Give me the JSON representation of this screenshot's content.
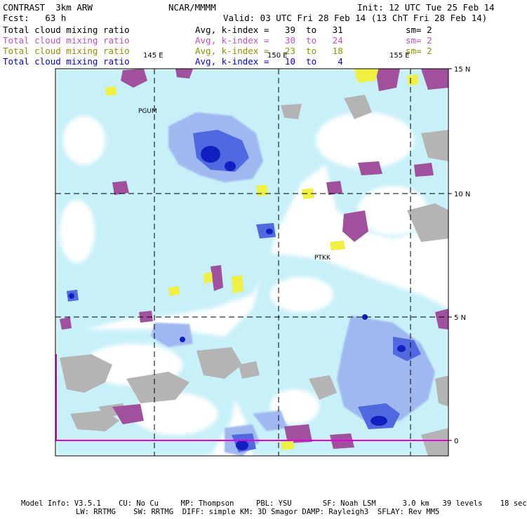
{
  "header": {
    "model": "CONTRAST  3km ARW",
    "org": "NCAR/MMMM",
    "init": "Init: 12 UTC Tue 25 Feb 14",
    "fcst": "Fcst:   63 h",
    "valid": "Valid: 03 UTC Fri 28 Feb 14 (13 ChT Fri 28 Feb 14)"
  },
  "legend": [
    {
      "name": "Total cloud mixing ratio",
      "stat": "Avg, k-index =   39  to   31",
      "sm": "sm= 2",
      "color": "#000000"
    },
    {
      "name": "Total cloud mixing ratio",
      "stat": "Avg, k-index =   30  to   24",
      "sm": "sm= 2",
      "color": "#c050c0"
    },
    {
      "name": "Total cloud mixing ratio",
      "stat": "Avg, k-index =   23  to   18",
      "sm": "sm= 2",
      "color": "#909000"
    },
    {
      "name": "Total cloud mixing ratio",
      "stat": "Avg, k-index =   10  to    4",
      "sm": "",
      "color": "#0000e0"
    }
  ],
  "map": {
    "lon_labels": [
      "145 E",
      "150 E",
      "155 E"
    ],
    "lat_labels": [
      "15 N",
      "10 N",
      "5 N",
      "0"
    ],
    "stations": [
      "PGUM",
      "PTKK"
    ],
    "colors": {
      "gray": "#b4b4b4",
      "purple": "#a0509c",
      "yellow": "#f0f040",
      "light_blue": "#c8f0f8",
      "mid_blue": "#a0b8f0",
      "blue": "#5068e0",
      "dark_blue": "#1020c0",
      "magenta_line": "#e000e0"
    }
  },
  "footer": {
    "line1": "Model Info: V3.5.1    CU: No Cu     MP: Thompson     PBL: YSU       SF: Noah LSM      3.0 km   39 levels    18 sec",
    "line2": "LW: RRTMG    SW: RRTMG  DIFF: simple KM: 3D Smagor DAMP: Rayleigh3  SFLAY: Rev MM5"
  }
}
